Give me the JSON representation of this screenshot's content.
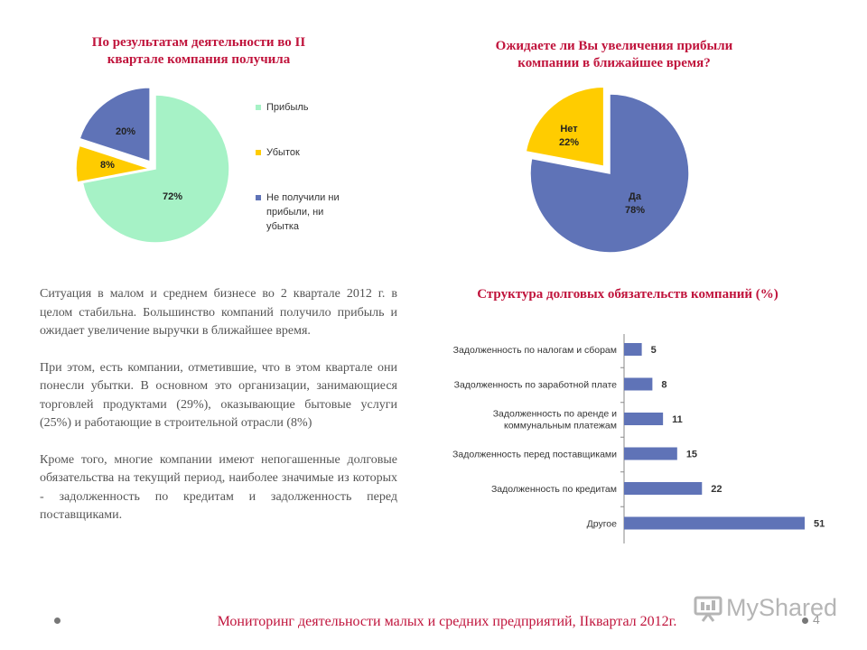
{
  "chart1": {
    "title_line1": "По результатам деятельности во II",
    "title_line2": "квартале компания получила",
    "chart_data": {
      "type": "pie",
      "title": "По результатам деятельности во II квартале компания получила",
      "categories": [
        "Прибыль",
        "Убыток",
        "Не получили ни прибыли, ни убытка"
      ],
      "values": [
        72,
        8,
        20
      ],
      "labels": [
        "72%",
        "8%",
        "20%"
      ],
      "colors": [
        "#a6f2c6",
        "#ffcc00",
        "#5f73b7"
      ],
      "legend_position": "right"
    },
    "legend": {
      "item1": "Прибыль",
      "item2": "Убыток",
      "item3_line1": "Не получили ни",
      "item3_line2": "прибыли, ни",
      "item3_line3": "убытка"
    }
  },
  "chart2": {
    "title_line1": "Ожидаете ли Вы увеличения прибыли",
    "title_line2": "компании в ближайшее время?",
    "chart_data": {
      "type": "pie",
      "title": "Ожидаете ли Вы увеличения прибыли компании в ближайшее время?",
      "categories": [
        "Да",
        "Нет"
      ],
      "values": [
        78,
        22
      ],
      "labels": [
        "78%",
        "22%"
      ],
      "colors": [
        "#5f73b7",
        "#ffcc00"
      ]
    }
  },
  "chart3": {
    "title": "Структура долговых обязательств компаний (%)",
    "chart_data": {
      "type": "bar",
      "orientation": "horizontal",
      "title": "Структура долговых обязательств компаний (%)",
      "categories": [
        "Задолженность по налогам и сборам",
        "Задолженность по заработной плате",
        "Задолженность по аренде и коммунальным платежам",
        "Задолженность перед поставщиками",
        "Задолженность по кредитам",
        "Другое"
      ],
      "category_lines": [
        [
          "Задолженность по налогам и сборам"
        ],
        [
          "Задолженность по заработной плате"
        ],
        [
          "Задолженность по аренде и",
          "коммунальным платежам"
        ],
        [
          "Задолженность перед поставщиками"
        ],
        [
          "Задолженность по кредитам"
        ],
        [
          "Другое"
        ]
      ],
      "values": [
        5,
        8,
        11,
        15,
        22,
        51
      ],
      "color": "#5f73b7",
      "xlim": [
        0,
        51
      ],
      "grid": false
    }
  },
  "text": {
    "p1": "Ситуация в малом и среднем бизнесе во 2 квартале 2012 г. в целом стабильна. Большинство компаний получило прибыль и ожидает увеличение выручки в ближайшее время.",
    "p2": "При этом, есть компании, отметившие, что в этом квартале они понесли убытки. В основном это организации, занимающиеся торговлей продуктами (29%), оказывающие бытовые услуги (25%) и работающие в строительной отрасли (8%)",
    "p3": "Кроме того, многие компании имеют непогашенные долговые обязательства на текущий период, наиболее значимые из которых - задолженность по кредитам и задолженность перед поставщиками."
  },
  "footer": {
    "text": "Мониторинг деятельности малых и средних предприятий, IIквартал 2012г.",
    "page_number": "4"
  },
  "watermark": "MyShared"
}
